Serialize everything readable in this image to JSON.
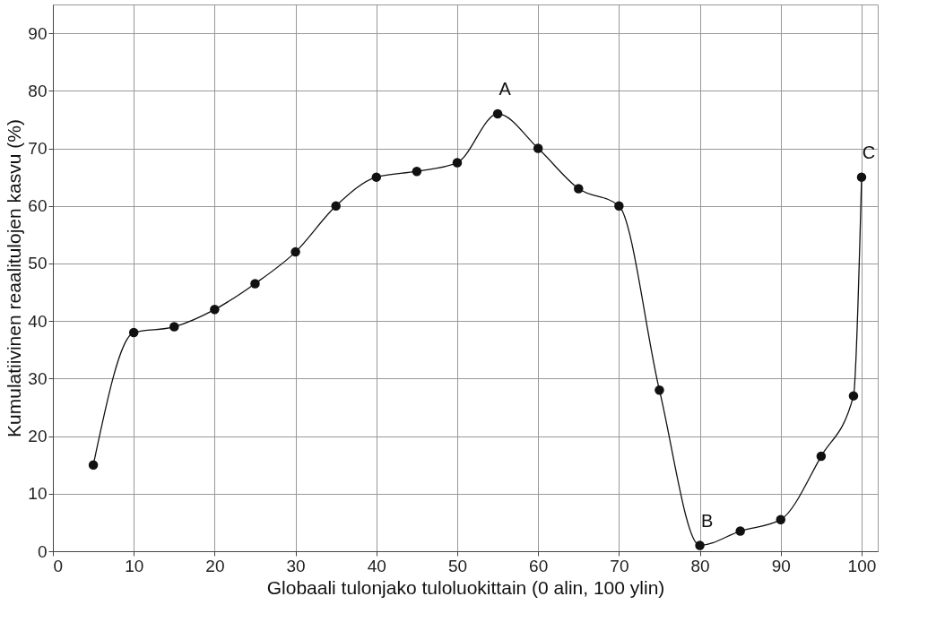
{
  "chart_data": {
    "type": "line",
    "xlabel": "Globaali tulonjako tuloluokittain (0 alin, 100 ylin)",
    "ylabel": "Kumulatiivinen reaalitulojen kasvu (%)",
    "x": [
      5,
      10,
      15,
      20,
      25,
      30,
      35,
      40,
      45,
      50,
      55,
      60,
      65,
      70,
      75,
      80,
      85,
      90,
      95,
      99,
      100
    ],
    "series": [
      {
        "color": "#111111",
        "values": [
          15,
          38,
          39,
          42,
          46.5,
          52,
          60,
          65,
          66,
          67.5,
          76,
          70,
          63,
          60,
          28,
          1,
          3.5,
          5.5,
          16.5,
          27,
          65
        ]
      }
    ],
    "xlim": [
      0,
      102
    ],
    "ylim": [
      0,
      95
    ],
    "xticks": [
      0,
      10,
      20,
      30,
      40,
      50,
      60,
      70,
      80,
      90,
      100
    ],
    "yticks": [
      0,
      10,
      20,
      30,
      40,
      50,
      60,
      70,
      80,
      90
    ],
    "grid": true,
    "marker": "circle",
    "line_style": "solid",
    "annotations": [
      {
        "text": "A",
        "x": 55,
        "y": 76
      },
      {
        "text": "B",
        "x": 80,
        "y": 1
      },
      {
        "text": "C",
        "x": 100,
        "y": 65
      }
    ]
  }
}
